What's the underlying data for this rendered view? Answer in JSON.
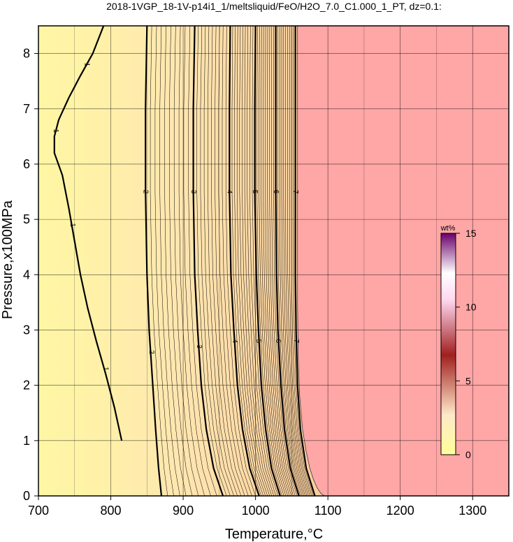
{
  "chart_data": {
    "type": "heatmap",
    "title": "2018-1VGP_18-1V-p14i1_1/meltsliquid/FeO/H2O_7.0_C1.000_1_PT, dz=0.1:",
    "xlabel": "Temperature,°C",
    "ylabel": "Pressure,x100MPa",
    "xlim": [
      700,
      1350
    ],
    "ylim": [
      0,
      8.5
    ],
    "x_ticks": [
      700,
      800,
      900,
      1000,
      1100,
      1200,
      1300
    ],
    "y_ticks": [
      0,
      1,
      2,
      3,
      4,
      5,
      6,
      7,
      8
    ],
    "grid": true,
    "liquidus_region_color": "#ffa6a6",
    "colorbar": {
      "unit": "wt%",
      "range": [
        0,
        15
      ],
      "ticks": [
        0,
        5,
        10,
        15
      ],
      "colors": [
        "#ffff9a",
        "#ffe8c8",
        "#a02020",
        "#ffd8f0",
        "#ffffff",
        "#6a006a"
      ],
      "placement": "right"
    },
    "contour_lines": [
      {
        "level": 1,
        "x": [
          790,
          775,
          758,
          742,
          728,
          722,
          722,
          733,
          742,
          750,
          758,
          768,
          780,
          793,
          805,
          815
        ],
        "y": [
          8.5,
          8.0,
          7.6,
          7.2,
          6.8,
          6.5,
          6.2,
          5.8,
          5.2,
          4.6,
          4.0,
          3.4,
          2.8,
          2.2,
          1.6,
          1.0
        ]
      },
      {
        "level": 2,
        "x": [
          850,
          848,
          848,
          850,
          853,
          858,
          862,
          866,
          870
        ],
        "y": [
          8.5,
          7.0,
          5.5,
          4.0,
          3.0,
          2.0,
          1.2,
          0.5,
          0.0
        ]
      },
      {
        "level": 3,
        "x": [
          916,
          914,
          914,
          916,
          920,
          925,
          932,
          942,
          955
        ],
        "y": [
          8.5,
          7.0,
          5.5,
          4.0,
          3.0,
          2.0,
          1.2,
          0.5,
          0.0
        ]
      },
      {
        "level": 4,
        "x": [
          965,
          964,
          964,
          966,
          970,
          975,
          982,
          992,
          1005
        ],
        "y": [
          8.5,
          7.0,
          5.5,
          4.0,
          3.0,
          2.0,
          1.2,
          0.5,
          0.0
        ]
      },
      {
        "level": 5,
        "x": [
          1000,
          999,
          999,
          1001,
          1004,
          1008,
          1014,
          1022,
          1034
        ],
        "y": [
          8.5,
          7.0,
          5.5,
          4.0,
          3.0,
          2.0,
          1.2,
          0.5,
          0.0
        ]
      },
      {
        "level": 6,
        "x": [
          1028,
          1028,
          1028,
          1029,
          1031,
          1035,
          1040,
          1048,
          1060
        ],
        "y": [
          8.5,
          7.0,
          5.5,
          4.0,
          3.0,
          2.0,
          1.2,
          0.5,
          0.0
        ]
      },
      {
        "level": 7,
        "x": [
          1055,
          1055,
          1055,
          1055,
          1056,
          1058,
          1062,
          1070,
          1082
        ],
        "y": [
          8.5,
          7.0,
          5.5,
          4.0,
          3.0,
          2.0,
          1.2,
          0.5,
          0.0
        ]
      }
    ],
    "contour_labels": [
      {
        "text": "1",
        "x": 767,
        "y": 7.8
      },
      {
        "text": "1",
        "x": 724,
        "y": 6.6
      },
      {
        "text": "1",
        "x": 747,
        "y": 4.9
      },
      {
        "text": "1",
        "x": 793,
        "y": 2.3
      },
      {
        "text": "2",
        "x": 848,
        "y": 5.5
      },
      {
        "text": "2",
        "x": 856,
        "y": 2.6
      },
      {
        "text": "3",
        "x": 914,
        "y": 5.5
      },
      {
        "text": "3",
        "x": 922,
        "y": 2.7
      },
      {
        "text": "4",
        "x": 964,
        "y": 5.5
      },
      {
        "text": "4",
        "x": 971,
        "y": 2.8
      },
      {
        "text": "5",
        "x": 999,
        "y": 5.5
      },
      {
        "text": "5",
        "x": 1004,
        "y": 2.8
      },
      {
        "text": "6",
        "x": 1028,
        "y": 5.5
      },
      {
        "text": "6",
        "x": 1031,
        "y": 2.8
      },
      {
        "text": "7",
        "x": 1055,
        "y": 5.5
      },
      {
        "text": "7",
        "x": 1056,
        "y": 2.8
      }
    ],
    "liquidus_boundary": {
      "x": [
        1058,
        1058,
        1058,
        1058,
        1059,
        1061,
        1065,
        1070,
        1075,
        1080,
        1085,
        1090,
        1095
      ],
      "y": [
        8.5,
        7.0,
        5.0,
        3.5,
        2.5,
        1.8,
        1.2,
        0.8,
        0.5,
        0.3,
        0.15,
        0.05,
        0.0
      ]
    }
  }
}
